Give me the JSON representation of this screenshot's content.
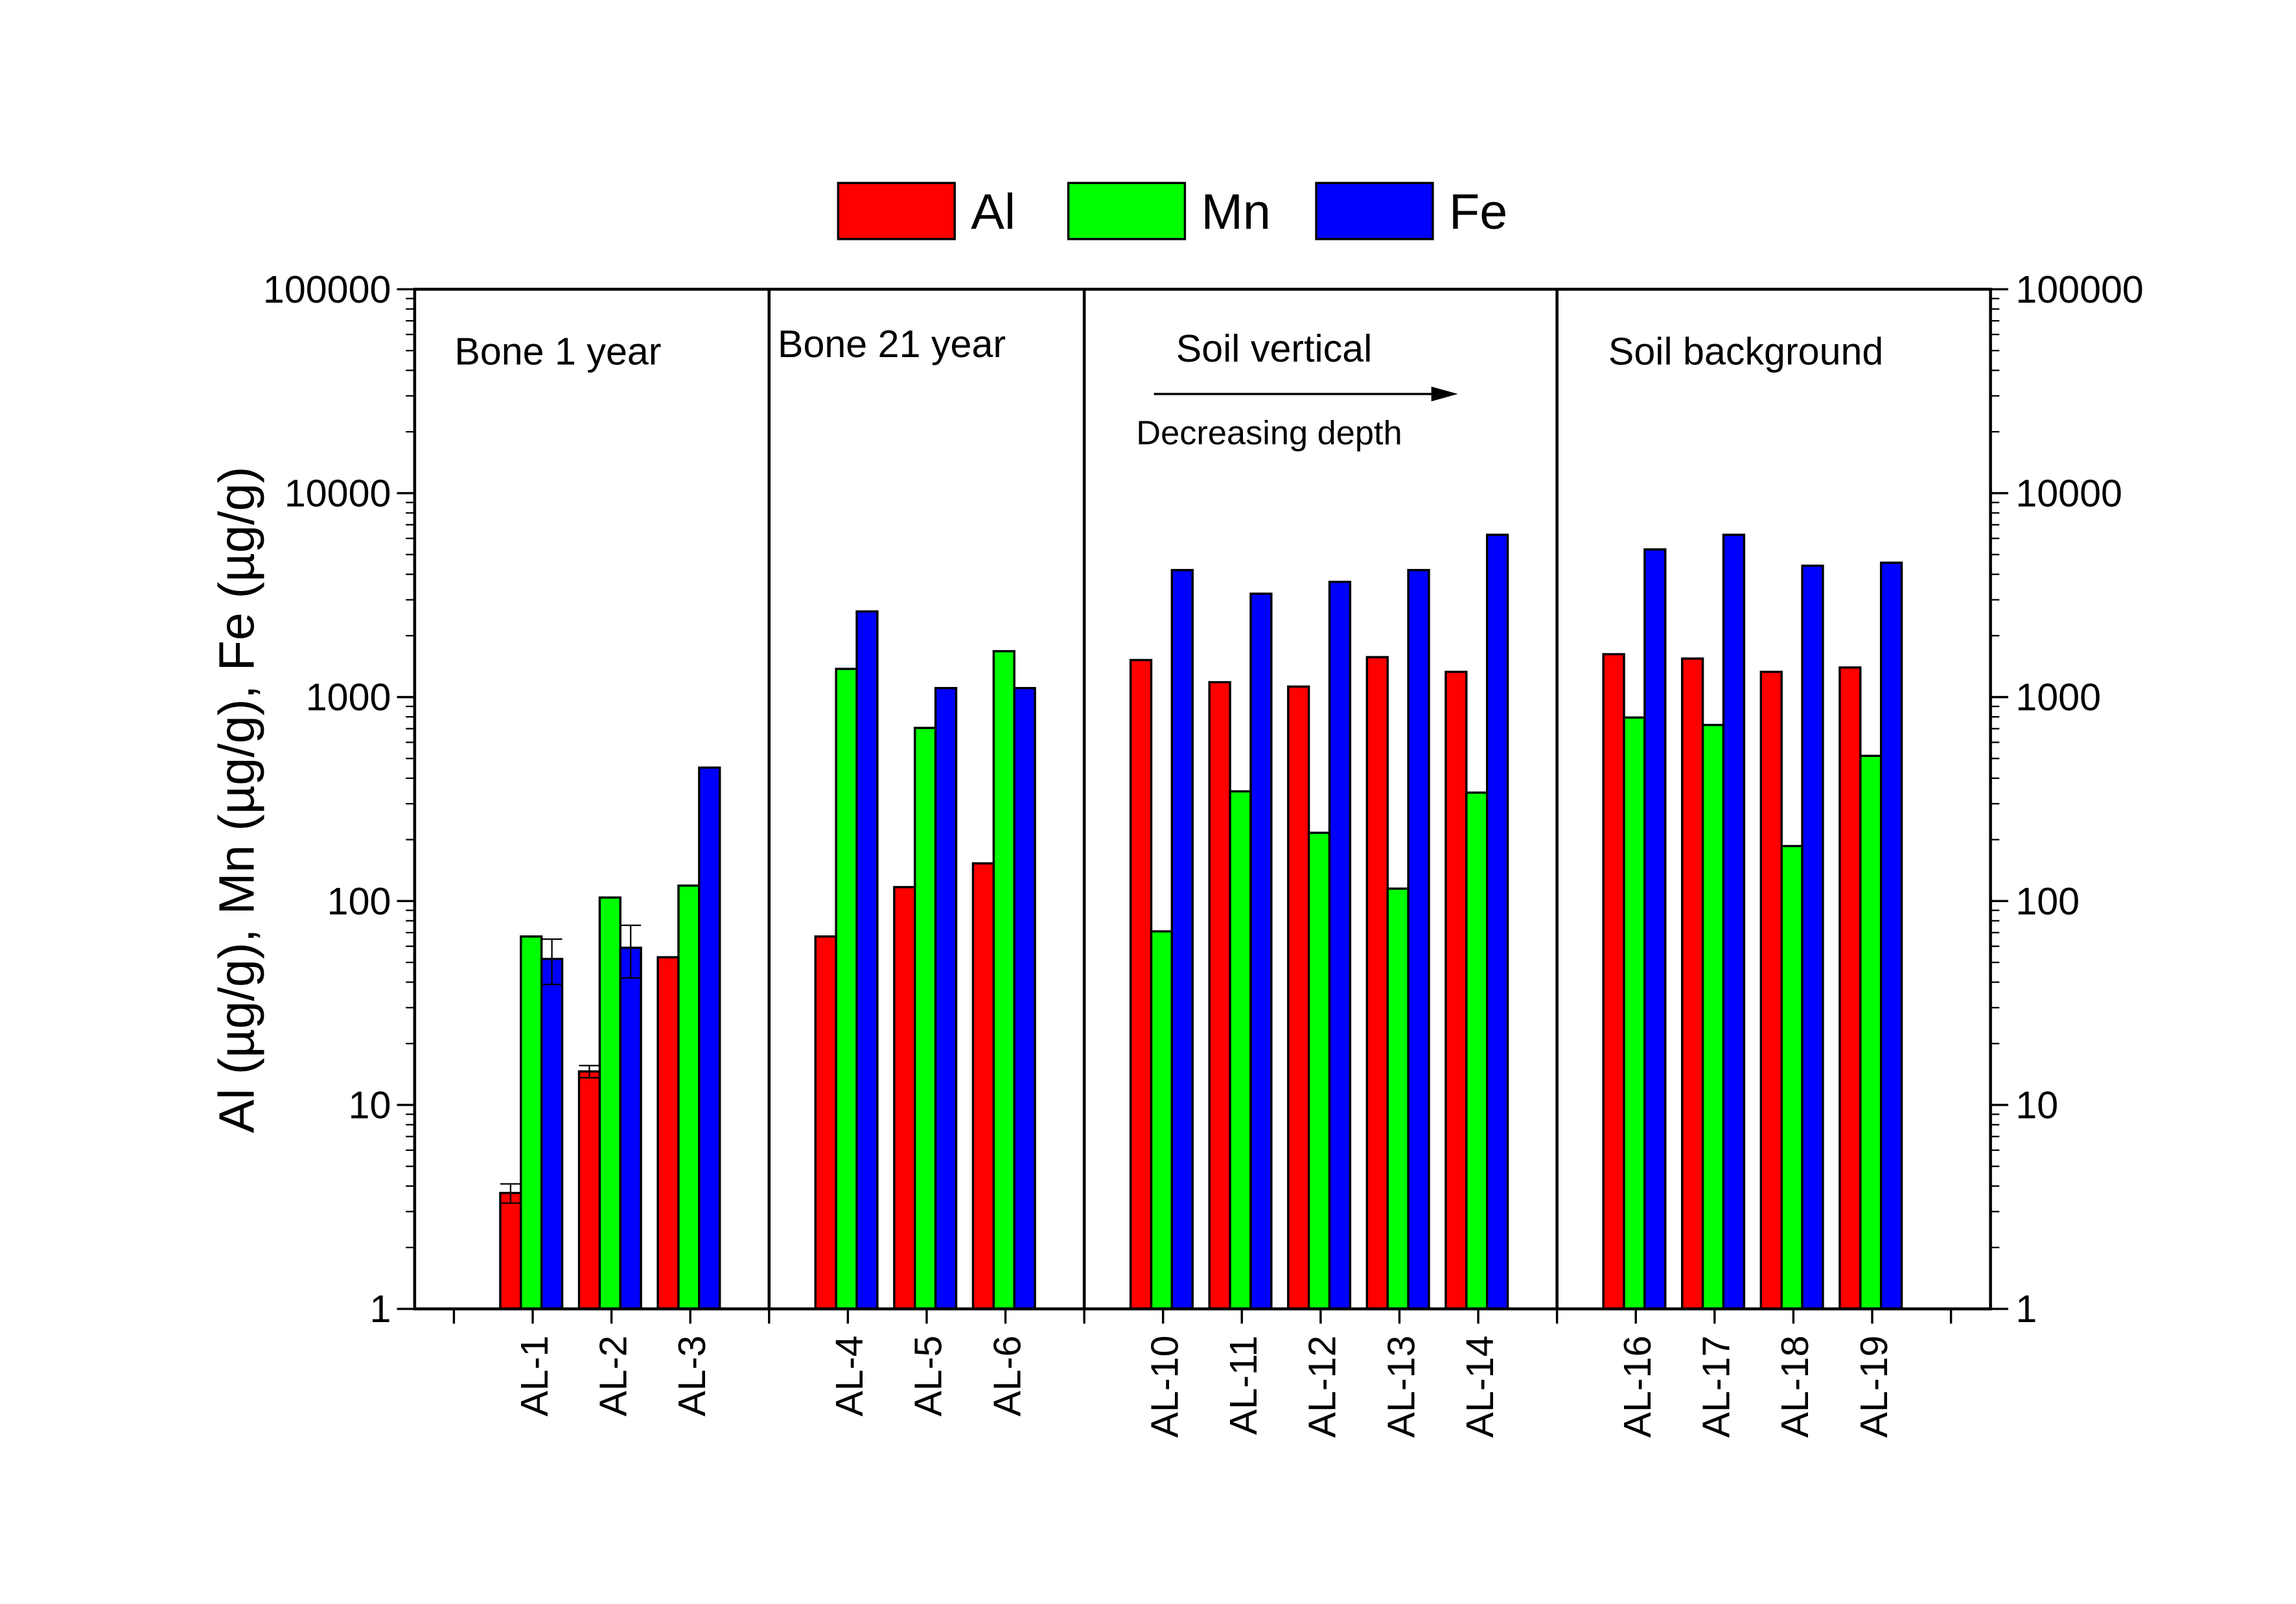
{
  "chart_data": {
    "type": "bar",
    "ylabel": "Al (µg/g), Mn (µg/g), Fe (µg/g)",
    "xlabel": "",
    "yscale": "log",
    "ylim": [
      1,
      100000
    ],
    "yticks": [
      "1",
      "10",
      "100",
      "1000",
      "10000",
      "100000"
    ],
    "grid": false,
    "legend_position": "top-center",
    "categories": [
      "",
      "AL-1",
      "AL-2",
      "AL-3",
      "",
      "AL-4",
      "AL-5",
      "AL-6",
      "",
      "AL-10",
      "AL-11",
      "AL-12",
      "AL-13",
      "AL-14",
      "",
      "AL-16",
      "AL-17",
      "AL-18",
      "AL-19",
      ""
    ],
    "series": [
      {
        "name": "Al",
        "color": "#ff0000",
        "values": [
          null,
          3.7,
          14.6,
          53,
          null,
          67,
          117,
          153,
          null,
          1519,
          1183,
          1126,
          1570,
          1330,
          null,
          1623,
          1545,
          1330,
          1397,
          null
        ],
        "errors": [
          null,
          0.4,
          1.0,
          null,
          null,
          null,
          null,
          null,
          null,
          null,
          null,
          null,
          null,
          null,
          null,
          null,
          null,
          null,
          null,
          null
        ]
      },
      {
        "name": "Mn",
        "color": "#00ff00",
        "values": [
          null,
          67,
          104,
          119,
          null,
          1375,
          706,
          1679,
          null,
          71,
          345,
          216,
          115,
          340,
          null,
          794,
          730,
          186,
          515,
          null
        ],
        "errors": [
          null,
          null,
          null,
          null,
          null,
          null,
          null,
          null,
          null,
          null,
          null,
          null,
          null,
          null,
          null,
          null,
          null,
          null,
          null,
          null
        ]
      },
      {
        "name": "Fe",
        "color": "#0000ff",
        "values": [
          null,
          52,
          59,
          451,
          null,
          2630,
          1107,
          1107,
          null,
          4196,
          3213,
          3672,
          4196,
          6250,
          null,
          5297,
          6250,
          4406,
          4560,
          null
        ],
        "errors": [
          null,
          13,
          17,
          null,
          null,
          null,
          null,
          null,
          null,
          null,
          null,
          null,
          null,
          null,
          null,
          null,
          null,
          null,
          null,
          null
        ]
      }
    ],
    "group_labels": [
      "Bone 1 year",
      "Bone 21 year",
      "Soil vertical",
      "Soil background"
    ],
    "annotation": "Decreasing depth"
  }
}
